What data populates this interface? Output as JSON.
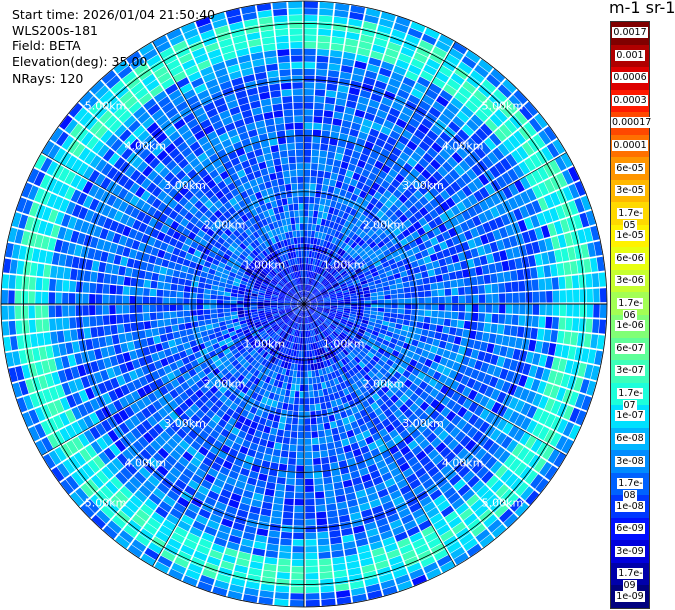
{
  "header": {
    "start_time": "Start time: 2026/01/04 21:50:40",
    "instrument": "WLS200s-181",
    "field": "Field: BETA",
    "elevation": "Elevation(deg): 35.00",
    "nrays": "NRays: 120"
  },
  "colorbar": {
    "title": "m-1 sr-1",
    "labels": [
      "0.0017",
      "0.001",
      "0.0006",
      "0.0003",
      "0.00017",
      "0.0001",
      "6e-05",
      "3e-05",
      "1.7e-05",
      "1e-05",
      "6e-06",
      "3e-06",
      "1.7e-06",
      "1e-06",
      "6e-07",
      "3e-07",
      "1.7e-07",
      "1e-07",
      "6e-08",
      "3e-08",
      "1.7e-08",
      "1e-08",
      "6e-09",
      "3e-09",
      "1.7e-09",
      "1e-09"
    ],
    "colors": [
      "#800000",
      "#b00000",
      "#dd0000",
      "#ff1a00",
      "#ff4800",
      "#ff7000",
      "#ff9500",
      "#ffb800",
      "#ffd900",
      "#fff200",
      "#e8ff10",
      "#c6ff31",
      "#a3ff54",
      "#81ff76",
      "#5fff98",
      "#3dffba",
      "#1cffdb",
      "#00e1ff",
      "#00b6ff",
      "#008cff",
      "#0062ff",
      "#0038ff",
      "#0010ff",
      "#0000dd",
      "#0000aa",
      "#00007f"
    ]
  },
  "chart_data": {
    "type": "heatmap",
    "projection": "polar",
    "field": "BETA",
    "elevation_deg": 35.0,
    "n_rays": 120,
    "azimuth_range_deg": [
      0,
      360
    ],
    "range_km": [
      0,
      5.4
    ],
    "range_rings_km": [
      1,
      2,
      3,
      4,
      5
    ],
    "ring_labels": [
      "1.00km",
      "2.00km",
      "3.00km",
      "4.00km",
      "5.00km"
    ],
    "color_scale": "log",
    "value_range": [
      1e-09,
      0.0017
    ],
    "typical_value": 1.7e-08,
    "enhanced_band_km": [
      4.5,
      5.2
    ],
    "enhanced_band_value": 1.7e-07,
    "grid": true
  }
}
